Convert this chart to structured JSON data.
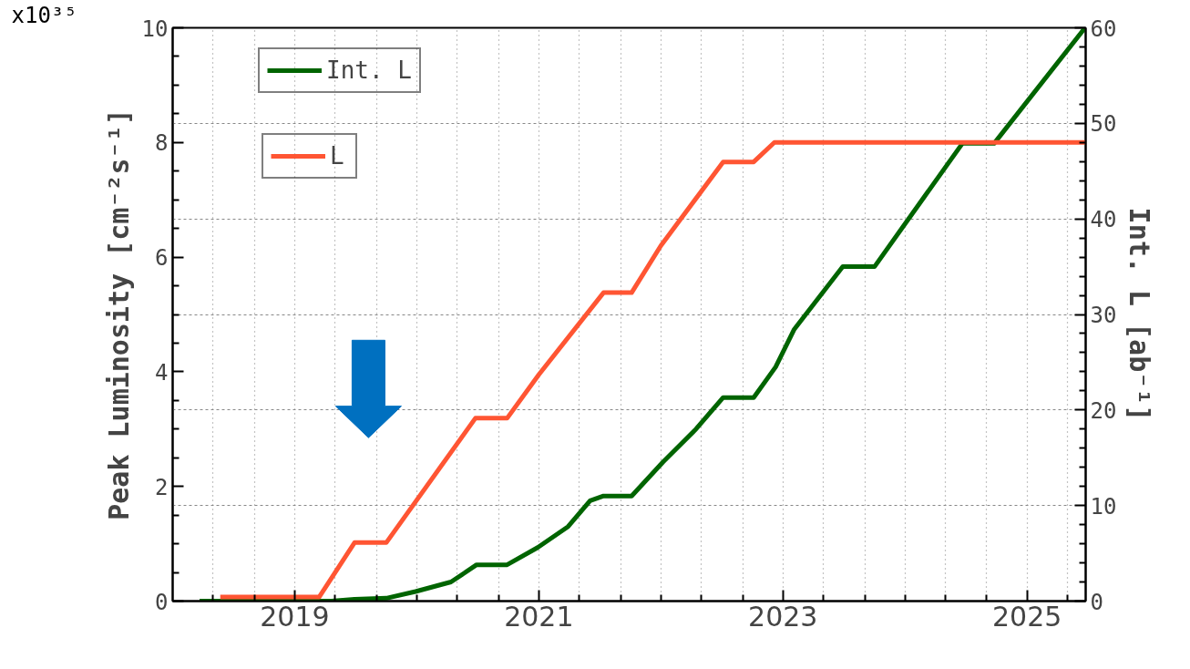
{
  "chart_data": {
    "type": "line",
    "xlabel": null,
    "ylabel": "Peak Luminosity [cm⁻²s⁻¹]",
    "y2label": "Int. L [ab⁻¹]",
    "annotations": [
      "x10³⁵"
    ],
    "xlim": [
      2018.0,
      2025.48
    ],
    "xticks": [
      {
        "value": 2018.33,
        "label": null
      },
      {
        "value": 2018.67,
        "label": null
      },
      2019,
      {
        "value": 2019.33,
        "label": null
      },
      {
        "value": 2019.67,
        "label": null
      },
      {
        "value": 2020,
        "label": null
      },
      {
        "value": 2020.33,
        "label": null
      },
      {
        "value": 2020.67,
        "label": null
      },
      2021,
      {
        "value": 2021.33,
        "label": null
      },
      {
        "value": 2021.67,
        "label": null
      },
      {
        "value": 2022,
        "label": null
      },
      {
        "value": 2022.33,
        "label": null
      },
      {
        "value": 2022.67,
        "label": null
      },
      2023,
      {
        "value": 2023.33,
        "label": null
      },
      {
        "value": 2023.67,
        "label": null
      },
      {
        "value": 2024,
        "label": null
      },
      {
        "value": 2024.33,
        "label": null
      },
      {
        "value": 2024.67,
        "label": null
      },
      2025,
      {
        "value": 2025.33,
        "label": null
      }
    ],
    "ylim": [
      0,
      10
    ],
    "yticks": [
      0,
      {
        "value": 0.5,
        "label": null
      },
      {
        "value": 1,
        "label": null
      },
      {
        "value": 1.5,
        "label": null
      },
      2,
      {
        "value": 2.5,
        "label": null
      },
      {
        "value": 3,
        "label": null
      },
      {
        "value": 3.5,
        "label": null
      },
      4,
      {
        "value": 4.5,
        "label": null
      },
      {
        "value": 5,
        "label": null
      },
      {
        "value": 5.5,
        "label": null
      },
      6,
      {
        "value": 6.5,
        "label": null
      },
      {
        "value": 7,
        "label": null
      },
      {
        "value": 7.5,
        "label": null
      },
      8,
      {
        "value": 8.5,
        "label": null
      },
      {
        "value": 9,
        "label": null
      },
      {
        "value": 9.5,
        "label": null
      },
      10
    ],
    "y2lim": [
      0,
      60
    ],
    "y2ticks": [
      0,
      {
        "value": 2,
        "label": null
      },
      {
        "value": 4,
        "label": null
      },
      {
        "value": 6,
        "label": null
      },
      {
        "value": 8,
        "label": null
      },
      10,
      {
        "value": 12,
        "label": null
      },
      {
        "value": 14,
        "label": null
      },
      {
        "value": 16,
        "label": null
      },
      {
        "value": 18,
        "label": null
      },
      20,
      {
        "value": 22,
        "label": null
      },
      {
        "value": 24,
        "label": null
      },
      {
        "value": 26,
        "label": null
      },
      {
        "value": 28,
        "label": null
      },
      30,
      {
        "value": 32,
        "label": null
      },
      {
        "value": 34,
        "label": null
      },
      {
        "value": 36,
        "label": null
      },
      {
        "value": 38,
        "label": null
      },
      40,
      {
        "value": 42,
        "label": null
      },
      {
        "value": 44,
        "label": null
      },
      {
        "value": 46,
        "label": null
      },
      {
        "value": 48,
        "label": null
      },
      50,
      {
        "value": 52,
        "label": null
      },
      {
        "value": 54,
        "label": null
      },
      {
        "value": 56,
        "label": null
      },
      {
        "value": 58,
        "label": null
      },
      60
    ],
    "grid": true,
    "legend": "top left",
    "line_style": "solid",
    "series": [
      {
        "name": "Int. L",
        "color": "#006400",
        "axis": "y2",
        "x": [
          2018.22,
          2019.3,
          2019.49,
          2019.75,
          2019.99,
          2020.28,
          2020.49,
          2020.74,
          2020.99,
          2021.24,
          2021.42,
          2021.53,
          2021.76,
          2022.02,
          2022.28,
          2022.51,
          2022.76,
          2022.94,
          2023.09,
          2023.49,
          2023.75,
          2024.47,
          2024.73,
          2025.475
        ],
        "values": [
          0,
          0,
          0.2,
          0.3,
          1.0,
          2.0,
          3.8,
          3.8,
          5.6,
          7.8,
          10.5,
          11.0,
          11.0,
          14.6,
          17.9,
          21.3,
          21.3,
          24.5,
          28.4,
          35.0,
          35.0,
          47.9,
          47.9,
          60
        ]
      },
      {
        "name": "L",
        "color": "#ff5533",
        "x": [
          2018.39,
          2019.2,
          2019.49,
          2019.75,
          2020.48,
          2020.74,
          2021.0,
          2021.53,
          2021.76,
          2022.0,
          2022.51,
          2022.76,
          2022.93,
          2025.475
        ],
        "values": [
          0.07,
          0.07,
          1.02,
          1.02,
          3.19,
          3.19,
          3.95,
          5.38,
          5.38,
          6.2,
          7.66,
          7.66,
          8.0,
          8.0
        ]
      }
    ]
  }
}
